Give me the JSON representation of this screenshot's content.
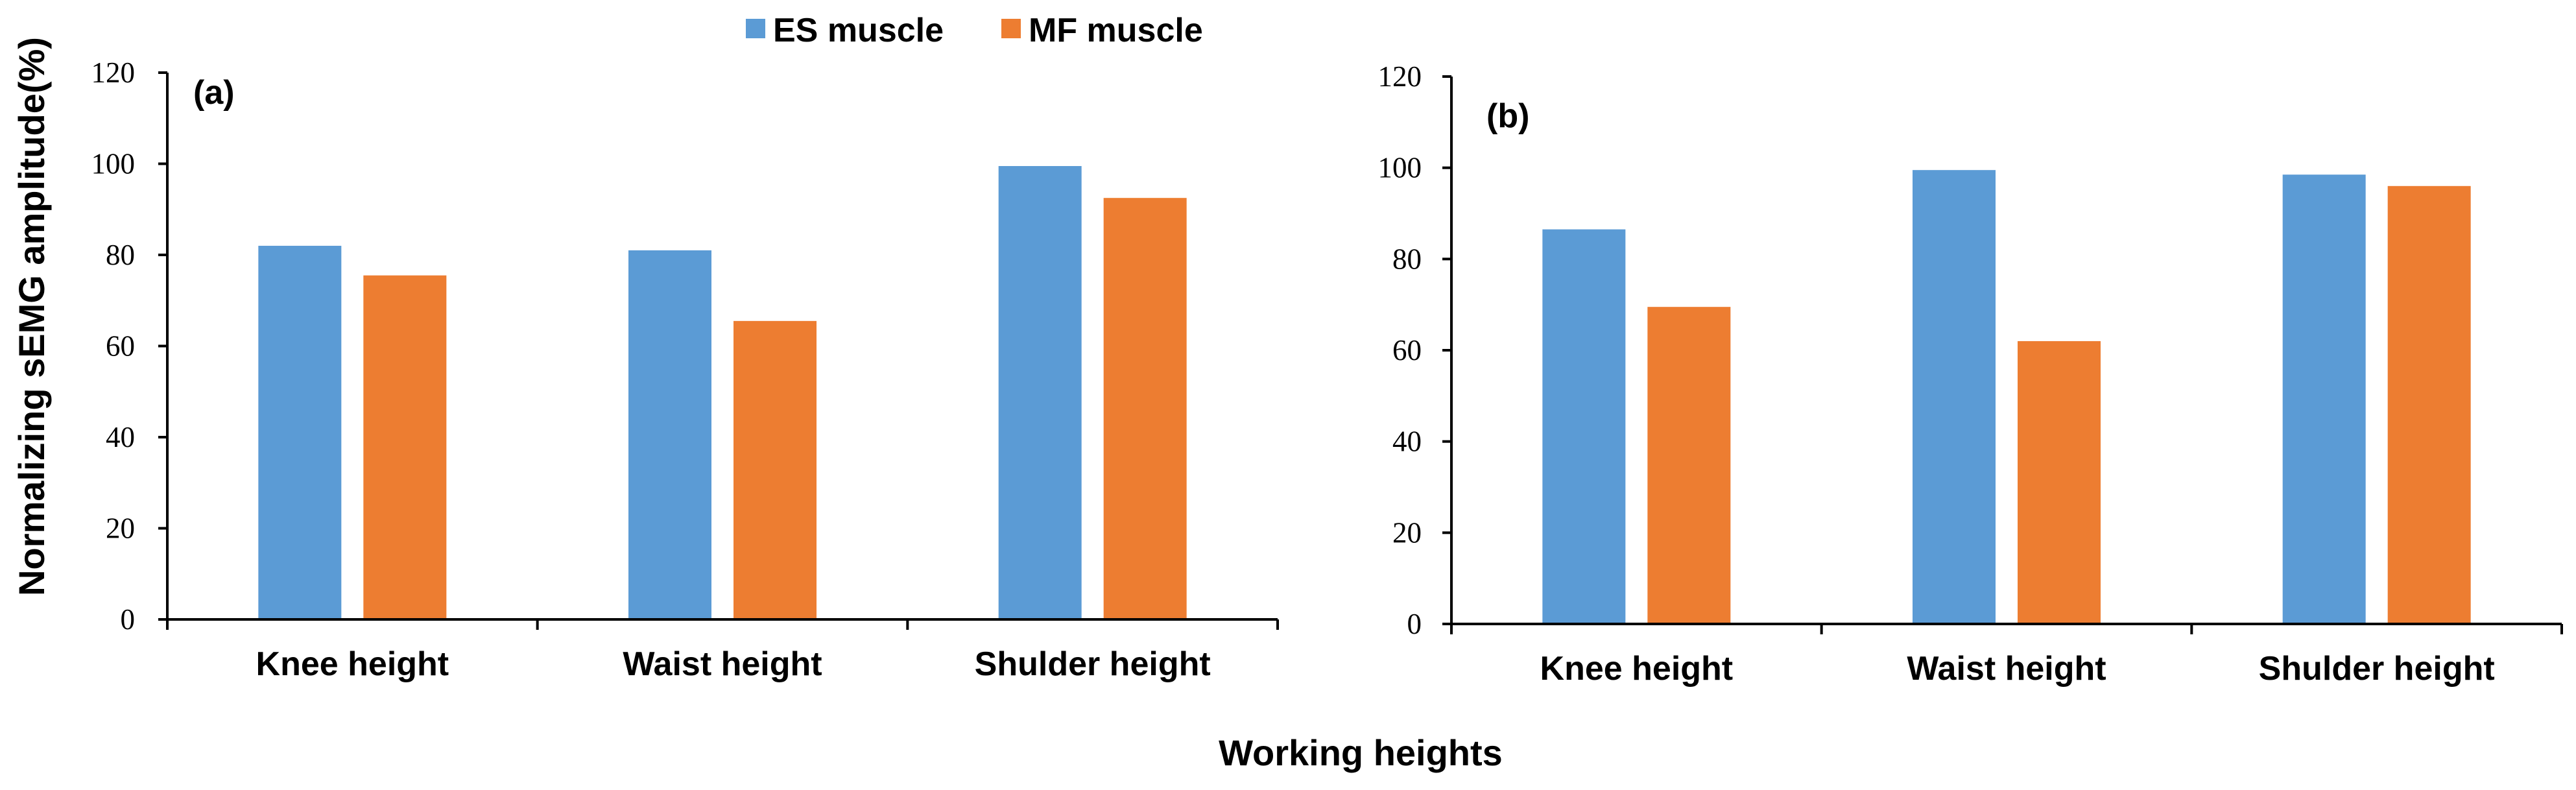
{
  "legend": {
    "items": [
      {
        "name": "ES muscle",
        "color": "#5B9BD5"
      },
      {
        "name": "MF muscle",
        "color": "#ED7D31"
      }
    ]
  },
  "shared_xlabel": "Working heights",
  "shared_ylabel": "Normalizing sEMG amplitude(%)",
  "chart_data": [
    {
      "type": "bar",
      "panel_label": "(a)",
      "categories": [
        "Knee height",
        "Waist height",
        "Shulder height"
      ],
      "series": [
        {
          "name": "ES muscle",
          "values": [
            82,
            81,
            99.5
          ]
        },
        {
          "name": "MF muscle",
          "values": [
            75.5,
            65.5,
            92.5
          ]
        }
      ],
      "ylim": [
        0,
        120
      ],
      "yticks": [
        0,
        20,
        40,
        60,
        80,
        100,
        120
      ],
      "ylabel": "Normalizing sEMG amplitude(%)",
      "xlabel": "Working heights"
    },
    {
      "type": "bar",
      "panel_label": "(b)",
      "categories": [
        "Knee height",
        "Waist height",
        "Shulder height"
      ],
      "series": [
        {
          "name": "ES muscle",
          "values": [
            86.5,
            99.5,
            98.5
          ]
        },
        {
          "name": "MF muscle",
          "values": [
            69.5,
            62,
            96
          ]
        }
      ],
      "ylim": [
        0,
        120
      ],
      "yticks": [
        0,
        20,
        40,
        60,
        80,
        100,
        120
      ],
      "ylabel": "Normalizing sEMG amplitude(%)",
      "xlabel": "Working heights"
    }
  ]
}
